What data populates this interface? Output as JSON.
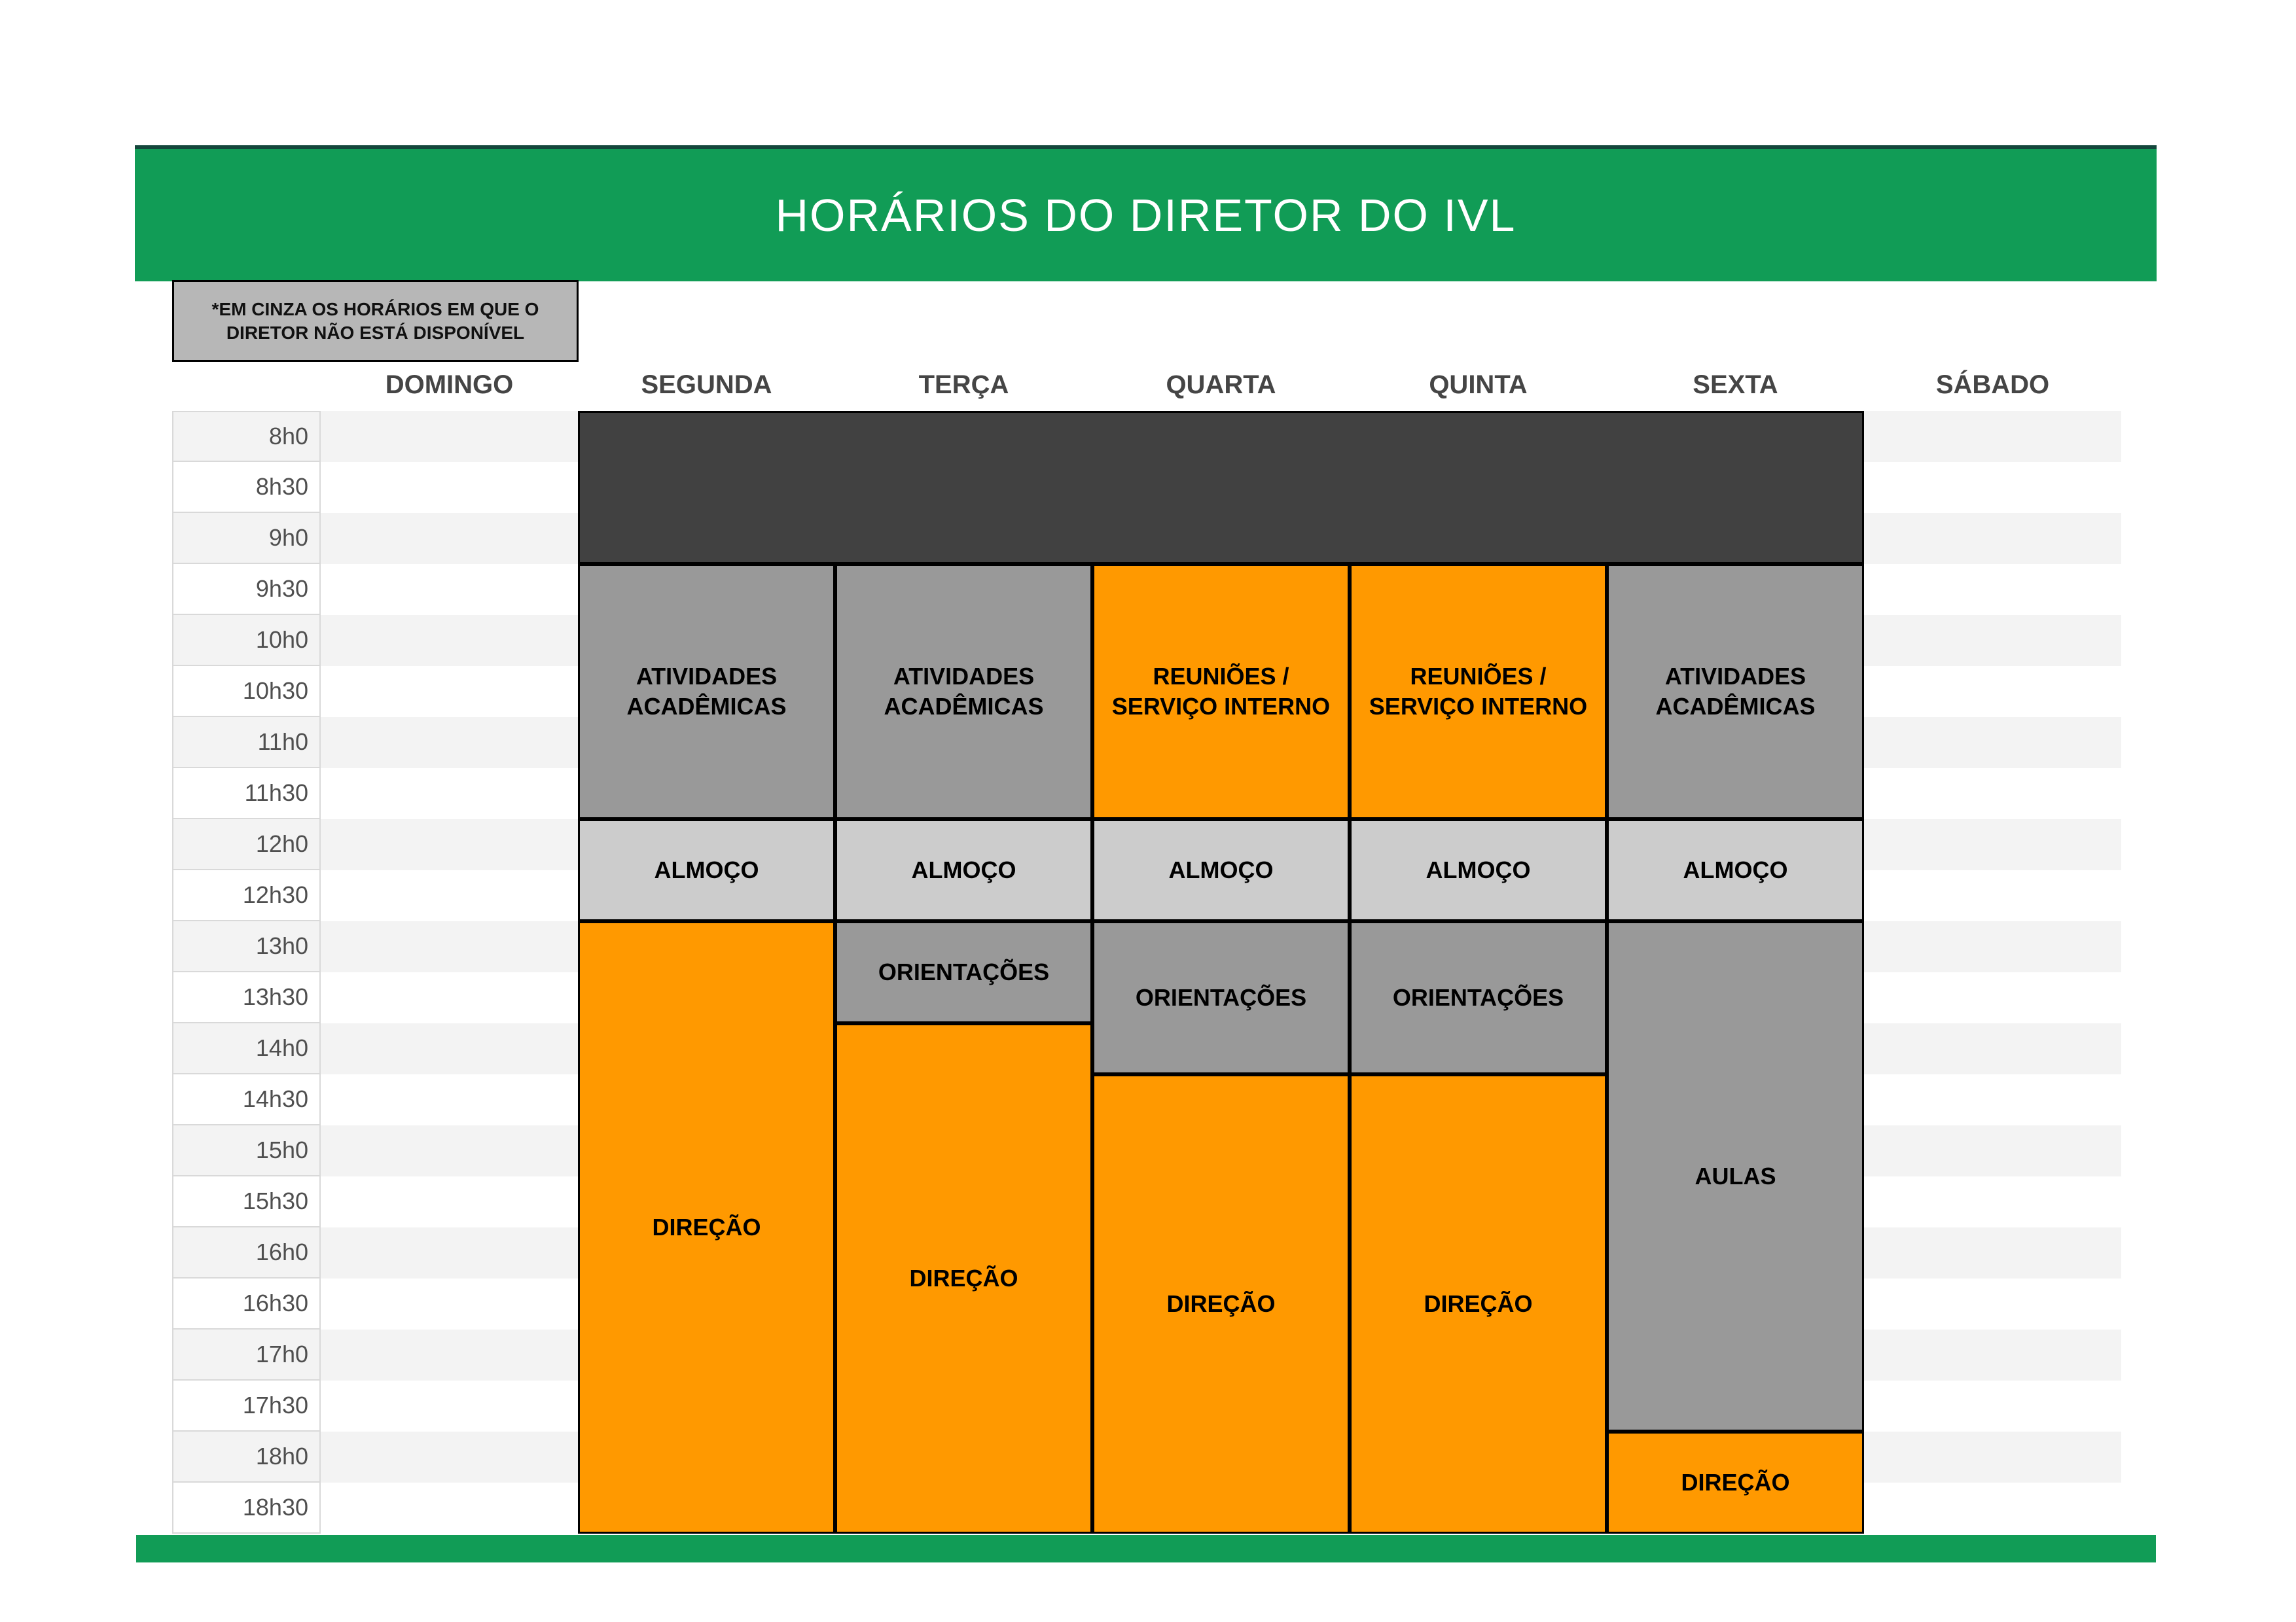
{
  "banner": {
    "title": "HORÁRIOS DO DIRETOR DO IVL"
  },
  "note": {
    "line1": "*EM CINZA OS HORÁRIOS EM QUE O",
    "line2": "DIRETOR NÃO ESTÁ DISPONÍVEL"
  },
  "days": [
    "DOMINGO",
    "SEGUNDA",
    "TERÇA",
    "QUARTA",
    "QUINTA",
    "SEXTA",
    "SÁBADO"
  ],
  "times": [
    "8h0",
    "8h30",
    "9h0",
    "9h30",
    "10h0",
    "10h30",
    "11h0",
    "11h30",
    "12h0",
    "12h30",
    "13h0",
    "13h30",
    "14h0",
    "14h30",
    "15h0",
    "15h30",
    "16h0",
    "16h30",
    "17h0",
    "17h30",
    "18h0",
    "18h30"
  ],
  "colors": {
    "green": "#119C56",
    "green_dark_edge": "#14473C",
    "orange": "#FF9900",
    "dark_gray": "#414141",
    "medium_gray": "#999999",
    "light_gray": "#CCCCCC",
    "note_gray": "#B7B7B7",
    "stripe_gray": "#F3F3F3",
    "time_text": "#4F4F4F",
    "header_text": "#454545"
  },
  "schedule_blocks": [
    {
      "name": "unavailable-block",
      "label": "",
      "day_start": 1,
      "day_end": 5,
      "row_start": 0,
      "row_end": 3,
      "time_range": "8h0–9h30",
      "color": "dark_gray"
    },
    {
      "name": "segunda-atividades",
      "label": "ATIVIDADES\nACADÊMICAS",
      "day_start": 1,
      "day_end": 1,
      "row_start": 3,
      "row_end": 8,
      "time_range": "9h30–12h0",
      "color": "medium_gray"
    },
    {
      "name": "terca-atividades",
      "label": "ATIVIDADES\nACADÊMICAS",
      "day_start": 2,
      "day_end": 2,
      "row_start": 3,
      "row_end": 8,
      "time_range": "9h30–12h0",
      "color": "medium_gray"
    },
    {
      "name": "quarta-reunioes",
      "label": "REUNIÕES /\nSERVIÇO INTERNO",
      "day_start": 3,
      "day_end": 3,
      "row_start": 3,
      "row_end": 8,
      "time_range": "9h30–12h0",
      "color": "orange"
    },
    {
      "name": "quinta-reunioes",
      "label": "REUNIÕES /\nSERVIÇO INTERNO",
      "day_start": 4,
      "day_end": 4,
      "row_start": 3,
      "row_end": 8,
      "time_range": "9h30–12h0",
      "color": "orange"
    },
    {
      "name": "sexta-atividades",
      "label": "ATIVIDADES\nACADÊMICAS",
      "day_start": 5,
      "day_end": 5,
      "row_start": 3,
      "row_end": 8,
      "time_range": "9h30–12h0",
      "color": "medium_gray"
    },
    {
      "name": "segunda-almoco",
      "label": "ALMOÇO",
      "day_start": 1,
      "day_end": 1,
      "row_start": 8,
      "row_end": 10,
      "time_range": "12h0–13h0",
      "color": "light_gray"
    },
    {
      "name": "terca-almoco",
      "label": "ALMOÇO",
      "day_start": 2,
      "day_end": 2,
      "row_start": 8,
      "row_end": 10,
      "time_range": "12h0–13h0",
      "color": "light_gray"
    },
    {
      "name": "quarta-almoco",
      "label": "ALMOÇO",
      "day_start": 3,
      "day_end": 3,
      "row_start": 8,
      "row_end": 10,
      "time_range": "12h0–13h0",
      "color": "light_gray"
    },
    {
      "name": "quinta-almoco",
      "label": "ALMOÇO",
      "day_start": 4,
      "day_end": 4,
      "row_start": 8,
      "row_end": 10,
      "time_range": "12h0–13h0",
      "color": "light_gray"
    },
    {
      "name": "sexta-almoco",
      "label": "ALMOÇO",
      "day_start": 5,
      "day_end": 5,
      "row_start": 8,
      "row_end": 10,
      "time_range": "12h0–13h0",
      "color": "light_gray"
    },
    {
      "name": "segunda-direcao",
      "label": "DIREÇÃO",
      "day_start": 1,
      "day_end": 1,
      "row_start": 10,
      "row_end": 22,
      "time_range": "13h0–18h30",
      "color": "orange"
    },
    {
      "name": "terca-orientacoes",
      "label": "ORIENTAÇÕES",
      "day_start": 2,
      "day_end": 2,
      "row_start": 10,
      "row_end": 12,
      "time_range": "13h0–14h0",
      "color": "medium_gray"
    },
    {
      "name": "terca-direcao",
      "label": "DIREÇÃO",
      "day_start": 2,
      "day_end": 2,
      "row_start": 12,
      "row_end": 22,
      "time_range": "14h0–18h30",
      "color": "orange"
    },
    {
      "name": "quarta-orientacoes",
      "label": "ORIENTAÇÕES",
      "day_start": 3,
      "day_end": 3,
      "row_start": 10,
      "row_end": 13,
      "time_range": "13h0–14h30",
      "color": "medium_gray"
    },
    {
      "name": "quarta-direcao",
      "label": "DIREÇÃO",
      "day_start": 3,
      "day_end": 3,
      "row_start": 13,
      "row_end": 22,
      "time_range": "14h30–18h30",
      "color": "orange"
    },
    {
      "name": "quinta-orientacoes",
      "label": "ORIENTAÇÕES",
      "day_start": 4,
      "day_end": 4,
      "row_start": 10,
      "row_end": 13,
      "time_range": "13h0–14h30",
      "color": "medium_gray"
    },
    {
      "name": "quinta-direcao",
      "label": "DIREÇÃO",
      "day_start": 4,
      "day_end": 4,
      "row_start": 13,
      "row_end": 22,
      "time_range": "14h30–18h30",
      "color": "orange"
    },
    {
      "name": "sexta-aulas",
      "label": "AULAS",
      "day_start": 5,
      "day_end": 5,
      "row_start": 10,
      "row_end": 20,
      "time_range": "13h0–18h0",
      "color": "medium_gray"
    },
    {
      "name": "sexta-direcao",
      "label": "DIREÇÃO",
      "day_start": 5,
      "day_end": 5,
      "row_start": 20,
      "row_end": 22,
      "time_range": "18h0–18h30",
      "color": "orange"
    }
  ]
}
